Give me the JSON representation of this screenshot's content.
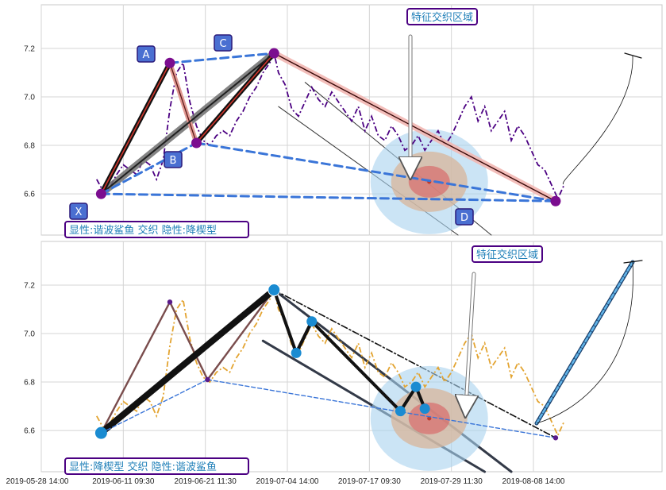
{
  "chart_data": [
    {
      "type": "line",
      "x_ticks": [
        "2019-05-28 14:00",
        "2019-06-11 09:30",
        "2019-06-21 11:30",
        "2019-07-04 14:00",
        "2019-07-17 09:30",
        "2019-07-29 11:30",
        "2019-08-08 14:00"
      ],
      "y_ticks": [
        "6.6",
        "6.8",
        "7.0",
        "7.2"
      ],
      "ylim": [
        6.43,
        7.38
      ],
      "grid": true,
      "series": [
        {
          "color": "#4b0082",
          "style": "dash-dot",
          "points": [
            [
              0,
              6.66
            ],
            [
              3,
              6.61
            ],
            [
              6,
              6.63
            ],
            [
              9,
              6.68
            ],
            [
              12,
              6.72
            ],
            [
              15,
              6.7
            ],
            [
              18,
              6.68
            ],
            [
              21,
              6.74
            ],
            [
              24,
              6.72
            ],
            [
              27,
              6.66
            ],
            [
              30,
              6.74
            ],
            [
              33,
              6.95
            ],
            [
              36,
              7.1
            ],
            [
              39,
              7.14
            ],
            [
              42,
              6.98
            ],
            [
              45,
              6.88
            ],
            [
              48,
              6.82
            ],
            [
              51,
              6.8
            ],
            [
              54,
              6.84
            ],
            [
              57,
              6.86
            ],
            [
              60,
              6.84
            ],
            [
              63,
              6.9
            ],
            [
              66,
              6.94
            ],
            [
              69,
              7.0
            ],
            [
              72,
              7.04
            ],
            [
              75,
              7.1
            ],
            [
              78,
              7.14
            ],
            [
              80,
              7.18
            ],
            [
              82,
              7.1
            ],
            [
              85,
              7.05
            ],
            [
              88,
              6.95
            ],
            [
              91,
              6.92
            ],
            [
              94,
              6.98
            ],
            [
              97,
              7.04
            ],
            [
              100,
              6.99
            ],
            [
              103,
              6.96
            ],
            [
              106,
              7.02
            ],
            [
              109,
              6.98
            ],
            [
              112,
              6.94
            ],
            [
              115,
              6.9
            ],
            [
              118,
              6.96
            ],
            [
              121,
              6.86
            ],
            [
              124,
              6.92
            ],
            [
              127,
              6.84
            ],
            [
              130,
              6.82
            ],
            [
              133,
              6.88
            ],
            [
              136,
              6.84
            ],
            [
              139,
              6.78
            ],
            [
              142,
              6.8
            ],
            [
              145,
              6.84
            ],
            [
              148,
              6.78
            ],
            [
              151,
              6.82
            ],
            [
              154,
              6.86
            ],
            [
              157,
              6.8
            ],
            [
              160,
              6.84
            ],
            [
              163,
              6.9
            ],
            [
              166,
              6.96
            ],
            [
              169,
              7.0
            ],
            [
              172,
              6.9
            ],
            [
              175,
              6.96
            ],
            [
              178,
              6.86
            ],
            [
              181,
              6.9
            ],
            [
              184,
              6.94
            ],
            [
              187,
              6.82
            ],
            [
              190,
              6.88
            ],
            [
              193,
              6.84
            ],
            [
              196,
              6.78
            ],
            [
              199,
              6.72
            ],
            [
              202,
              6.7
            ],
            [
              205,
              6.64
            ],
            [
              208,
              6.58
            ],
            [
              211,
              6.64
            ]
          ]
        },
        {
          "color": "#e3a431",
          "style": "dash-dot",
          "points": [
            [
              0,
              6.66
            ],
            [
              3,
              6.61
            ],
            [
              6,
              6.63
            ],
            [
              9,
              6.68
            ],
            [
              12,
              6.72
            ],
            [
              15,
              6.7
            ],
            [
              18,
              6.68
            ],
            [
              21,
              6.74
            ],
            [
              24,
              6.72
            ],
            [
              27,
              6.66
            ],
            [
              30,
              6.74
            ],
            [
              33,
              6.95
            ],
            [
              36,
              7.1
            ],
            [
              39,
              7.14
            ],
            [
              42,
              6.98
            ],
            [
              45,
              6.88
            ],
            [
              48,
              6.82
            ],
            [
              51,
              6.8
            ],
            [
              54,
              6.84
            ],
            [
              57,
              6.86
            ],
            [
              60,
              6.84
            ],
            [
              63,
              6.9
            ],
            [
              66,
              6.94
            ],
            [
              69,
              7.0
            ],
            [
              72,
              7.04
            ],
            [
              75,
              7.1
            ],
            [
              78,
              7.14
            ],
            [
              80,
              7.18
            ],
            [
              82,
              7.1
            ],
            [
              85,
              7.05
            ],
            [
              88,
              6.95
            ],
            [
              91,
              6.92
            ],
            [
              94,
              6.98
            ],
            [
              97,
              7.04
            ],
            [
              100,
              6.99
            ],
            [
              103,
              6.96
            ],
            [
              106,
              7.02
            ],
            [
              109,
              6.98
            ],
            [
              112,
              6.94
            ],
            [
              115,
              6.9
            ],
            [
              118,
              6.96
            ],
            [
              121,
              6.86
            ],
            [
              124,
              6.92
            ],
            [
              127,
              6.84
            ],
            [
              130,
              6.82
            ],
            [
              133,
              6.88
            ],
            [
              136,
              6.84
            ],
            [
              139,
              6.78
            ],
            [
              142,
              6.8
            ],
            [
              145,
              6.84
            ],
            [
              148,
              6.78
            ],
            [
              151,
              6.82
            ],
            [
              154,
              6.86
            ],
            [
              157,
              6.8
            ],
            [
              160,
              6.84
            ],
            [
              163,
              6.9
            ],
            [
              166,
              6.96
            ],
            [
              169,
              7.0
            ],
            [
              172,
              6.9
            ],
            [
              175,
              6.96
            ],
            [
              178,
              6.86
            ],
            [
              181,
              6.9
            ],
            [
              184,
              6.94
            ],
            [
              187,
              6.82
            ],
            [
              190,
              6.88
            ],
            [
              193,
              6.84
            ],
            [
              196,
              6.78
            ],
            [
              199,
              6.72
            ],
            [
              202,
              6.7
            ],
            [
              205,
              6.64
            ],
            [
              208,
              6.58
            ],
            [
              211,
              6.64
            ]
          ]
        }
      ],
      "pattern_points": [
        {
          "label": "X",
          "x": 2,
          "y": 6.6
        },
        {
          "label": "A",
          "x": 33,
          "y": 7.14
        },
        {
          "label": "B",
          "x": 45,
          "y": 6.81
        },
        {
          "label": "C",
          "x": 80,
          "y": 7.18
        },
        {
          "label": "D",
          "x": 207,
          "y": 6.57
        }
      ],
      "lower_pivots": [
        [
          2,
          6.59
        ],
        [
          33,
          7.13
        ],
        [
          50,
          6.81
        ],
        [
          80,
          7.18
        ],
        [
          90,
          6.92
        ],
        [
          97,
          7.05
        ],
        [
          137,
          6.68
        ],
        [
          144,
          6.78
        ],
        [
          148,
          6.69
        ],
        [
          207,
          6.57
        ]
      ],
      "zone": {
        "x": 150,
        "y": 6.65
      },
      "zone_label": "特征交织区域",
      "upper_annotation": "显性:谐波鲨鱼 交织 隐性:降楔型",
      "lower_annotation": "显性:降楔型 交织 隐性:谐波鲨鱼"
    }
  ],
  "colors": {
    "purple": "#4b0082",
    "orange": "#e3a431",
    "blue": "#3a75d8",
    "label_bg": "#4a6fd1",
    "zone_blue": "#a9d2ef",
    "zone_tan": "#d8b59a",
    "zone_red": "#d96666"
  }
}
